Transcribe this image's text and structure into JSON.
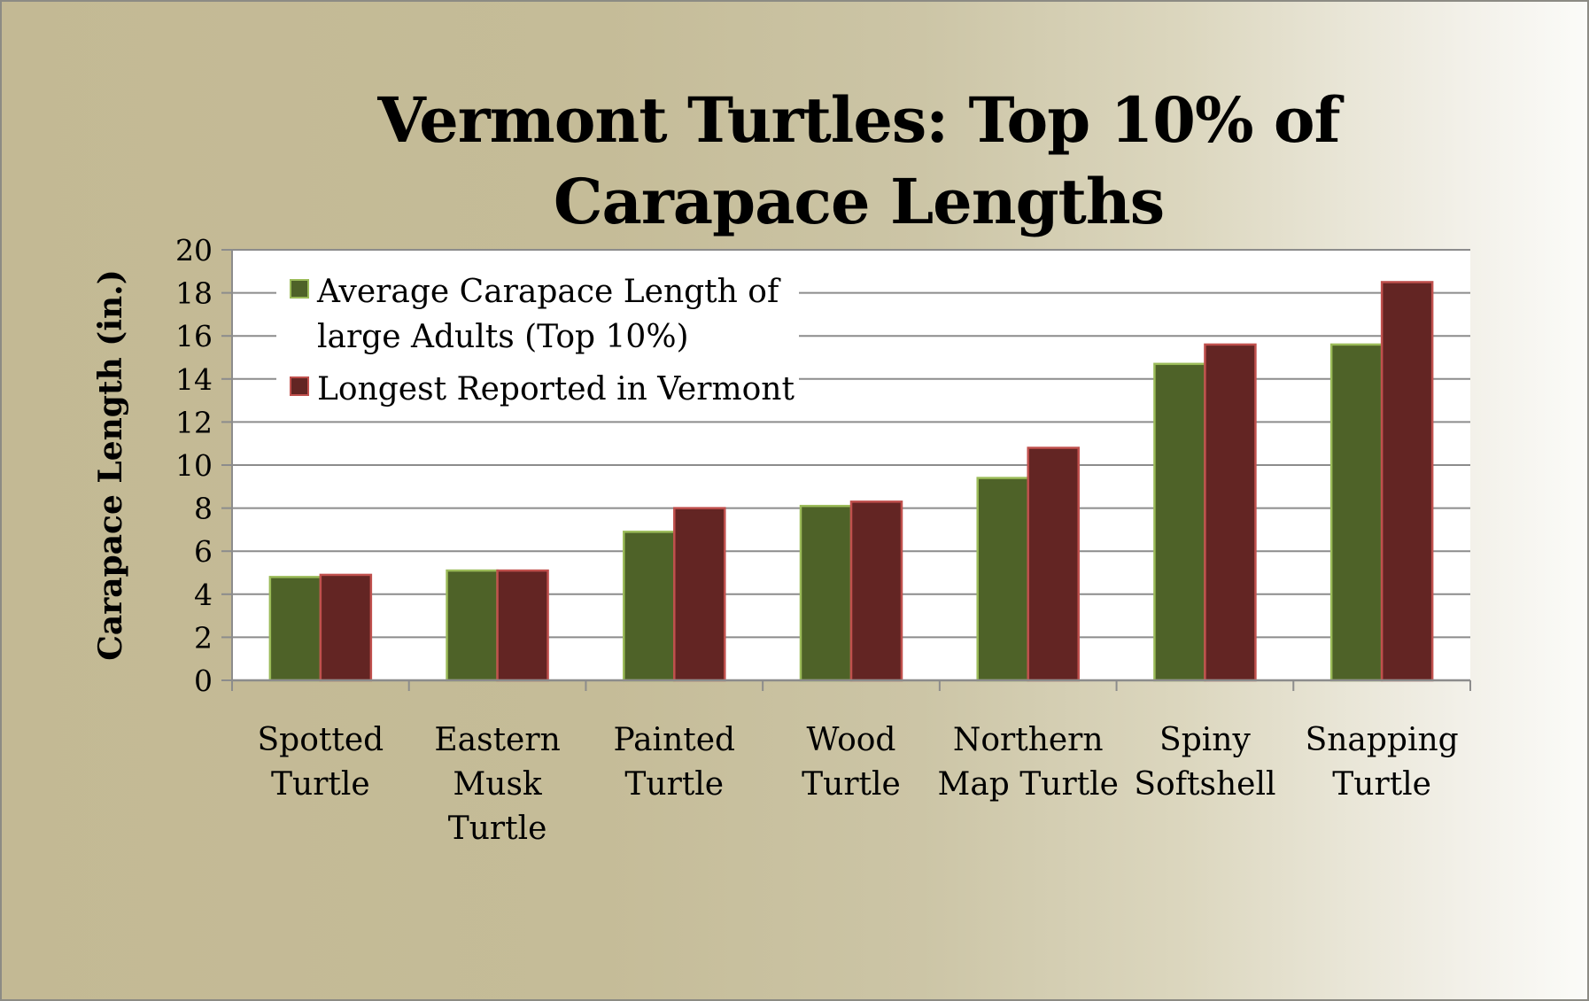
{
  "chart_data": {
    "type": "bar",
    "title": "Vermont Turtles: Top 10% of Carapace Lengths",
    "xlabel": "",
    "ylabel": "Carapace Length (in.)",
    "ylim": [
      0,
      20
    ],
    "yticks": [
      0,
      2,
      4,
      6,
      8,
      10,
      12,
      14,
      16,
      18,
      20
    ],
    "grid": true,
    "legend_position": "top-left",
    "categories": [
      [
        "Spotted",
        "Turtle"
      ],
      [
        "Eastern",
        "Musk",
        "Turtle"
      ],
      [
        "Painted",
        "Turtle"
      ],
      [
        "Wood",
        "Turtle"
      ],
      [
        "Northern",
        "Map Turtle"
      ],
      [
        "Spiny",
        "Softshell"
      ],
      [
        "Snapping",
        "Turtle"
      ]
    ],
    "series": [
      {
        "name": "Average Carapace Length of large Adults (Top 10%)",
        "legend_lines": [
          "Average Carapace Length of",
          "large Adults (Top 10%)"
        ],
        "color": "#4e6228",
        "edge": "#9bbb59",
        "values": [
          4.8,
          5.1,
          6.9,
          8.1,
          9.4,
          14.7,
          15.6
        ]
      },
      {
        "name": "Longest Reported in Vermont",
        "legend_lines": [
          "Longest Reported in Vermont"
        ],
        "color": "#632523",
        "edge": "#c0504d",
        "values": [
          4.9,
          5.1,
          8.0,
          8.3,
          10.8,
          15.6,
          18.5
        ]
      }
    ]
  }
}
